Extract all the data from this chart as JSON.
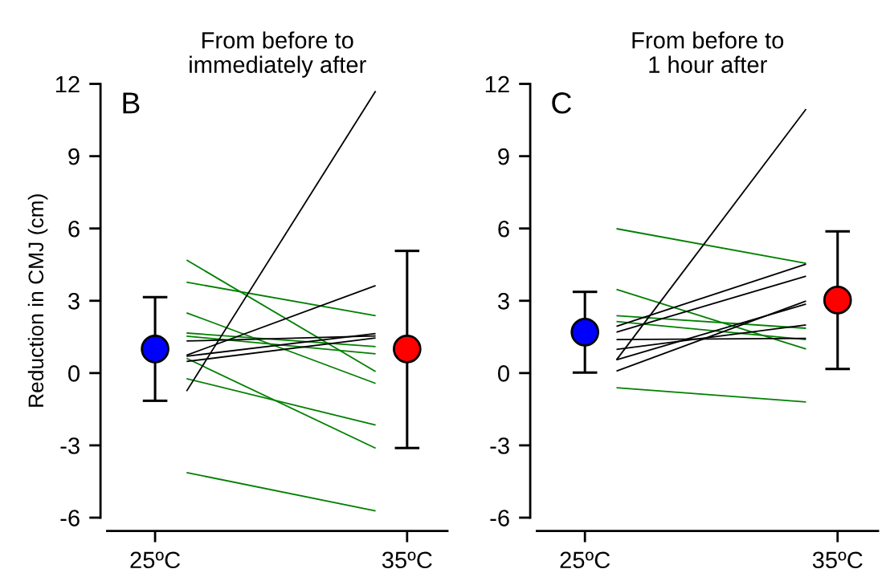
{
  "chart_data": [
    {
      "type": "line",
      "title": "From before to\nimmediately after",
      "ylabel": "Reduction in CMJ (cm)",
      "annotations": [
        "B"
      ],
      "categories": [
        "25ºC",
        null,
        null,
        null,
        null,
        null,
        null,
        null,
        "35ºC"
      ],
      "ylim": [
        -6,
        12
      ],
      "yticks": [
        -6,
        -3,
        0,
        3,
        6,
        9,
        12
      ],
      "grid": false,
      "series": [
        {
          "color": "#008000",
          "values": [
            null,
            4.69,
            null,
            null,
            null,
            null,
            null,
            0.06,
            null
          ]
        },
        {
          "color": "#008000",
          "values": [
            null,
            3.77,
            null,
            null,
            null,
            null,
            null,
            2.38,
            null
          ]
        },
        {
          "color": "#008000",
          "values": [
            null,
            2.5,
            null,
            null,
            null,
            null,
            null,
            -0.43,
            null
          ]
        },
        {
          "color": "#008000",
          "values": [
            null,
            1.66,
            null,
            null,
            null,
            null,
            null,
            1.1,
            null
          ]
        },
        {
          "color": "#008000",
          "values": [
            null,
            1.53,
            null,
            null,
            null,
            null,
            null,
            0.8,
            null
          ]
        },
        {
          "color": "#008000",
          "values": [
            null,
            0.61,
            null,
            null,
            null,
            null,
            null,
            -3.12,
            null
          ]
        },
        {
          "color": "#008000",
          "values": [
            null,
            -0.23,
            null,
            null,
            null,
            null,
            null,
            -2.16,
            null
          ]
        },
        {
          "color": "#008000",
          "values": [
            null,
            -4.13,
            null,
            null,
            null,
            null,
            null,
            -5.72,
            null
          ]
        },
        {
          "color": "#000000",
          "values": [
            null,
            -0.75,
            null,
            null,
            null,
            null,
            null,
            11.7,
            null
          ]
        },
        {
          "color": "#000000",
          "values": [
            null,
            1.33,
            null,
            null,
            null,
            null,
            null,
            1.54,
            null
          ]
        },
        {
          "color": "#000000",
          "values": [
            null,
            0.74,
            null,
            null,
            null,
            null,
            null,
            3.63,
            null
          ]
        },
        {
          "color": "#000000",
          "values": [
            null,
            0.7,
            null,
            null,
            null,
            null,
            null,
            1.64,
            null
          ]
        },
        {
          "color": "#000000",
          "values": [
            null,
            0.48,
            null,
            null,
            null,
            null,
            null,
            1.46,
            null
          ]
        },
        {
          "type": "scatter",
          "color": "#0000ff",
          "marker": "circle",
          "values": [
            1.0,
            null,
            null,
            null,
            null,
            null,
            null,
            null,
            null
          ],
          "errors": [
            [
              -1.15,
              3.15
            ],
            null,
            null,
            null,
            null,
            null,
            null,
            null,
            null
          ]
        },
        {
          "type": "scatter",
          "color": "#ff0000",
          "marker": "circle",
          "values": [
            null,
            null,
            null,
            null,
            null,
            null,
            null,
            null,
            1.0
          ],
          "errors": [
            null,
            null,
            null,
            null,
            null,
            null,
            null,
            null,
            [
              -3.11,
              5.07
            ]
          ]
        }
      ]
    },
    {
      "type": "line",
      "title": "From before to\n1 hour after",
      "annotations": [
        "C"
      ],
      "categories": [
        "25ºC",
        null,
        null,
        null,
        null,
        null,
        null,
        null,
        "35ºC"
      ],
      "ylim": [
        -6,
        12
      ],
      "yticks": [
        -6,
        -3,
        0,
        3,
        6,
        9,
        12
      ],
      "grid": false,
      "series": [
        {
          "color": "#008000",
          "values": [
            null,
            5.99,
            null,
            null,
            null,
            null,
            null,
            4.55,
            null
          ]
        },
        {
          "color": "#008000",
          "values": [
            null,
            3.47,
            null,
            null,
            null,
            null,
            null,
            1.0,
            null
          ]
        },
        {
          "color": "#008000",
          "values": [
            null,
            2.38,
            null,
            null,
            null,
            null,
            null,
            1.86,
            null
          ]
        },
        {
          "color": "#008000",
          "values": [
            null,
            2.14,
            null,
            null,
            null,
            null,
            null,
            1.39,
            null
          ]
        },
        {
          "color": "#008000",
          "values": [
            null,
            -0.61,
            null,
            null,
            null,
            null,
            null,
            -1.2,
            null
          ]
        },
        {
          "color": "#000000",
          "values": [
            null,
            0.55,
            null,
            null,
            null,
            null,
            null,
            10.95,
            null
          ]
        },
        {
          "color": "#000000",
          "values": [
            null,
            1.94,
            null,
            null,
            null,
            null,
            null,
            4.52,
            null
          ]
        },
        {
          "color": "#000000",
          "values": [
            null,
            1.7,
            null,
            null,
            null,
            null,
            null,
            4.02,
            null
          ]
        },
        {
          "color": "#000000",
          "values": [
            null,
            1.39,
            null,
            null,
            null,
            null,
            null,
            1.44,
            null
          ]
        },
        {
          "color": "#000000",
          "values": [
            null,
            0.98,
            null,
            null,
            null,
            null,
            null,
            2.0,
            null
          ]
        },
        {
          "color": "#000000",
          "values": [
            null,
            0.55,
            null,
            null,
            null,
            null,
            null,
            2.86,
            null
          ]
        },
        {
          "color": "#000000",
          "values": [
            null,
            0.08,
            null,
            null,
            null,
            null,
            null,
            2.99,
            null
          ]
        },
        {
          "type": "scatter",
          "color": "#0000ff",
          "marker": "circle",
          "values": [
            1.7,
            null,
            null,
            null,
            null,
            null,
            null,
            null,
            null
          ],
          "errors": [
            [
              0.02,
              3.37
            ],
            null,
            null,
            null,
            null,
            null,
            null,
            null,
            null
          ]
        },
        {
          "type": "scatter",
          "color": "#ff0000",
          "marker": "circle",
          "values": [
            null,
            null,
            null,
            null,
            null,
            null,
            null,
            null,
            3.03
          ],
          "errors": [
            null,
            null,
            null,
            null,
            null,
            null,
            null,
            null,
            [
              0.17,
              5.88
            ]
          ]
        }
      ]
    }
  ]
}
